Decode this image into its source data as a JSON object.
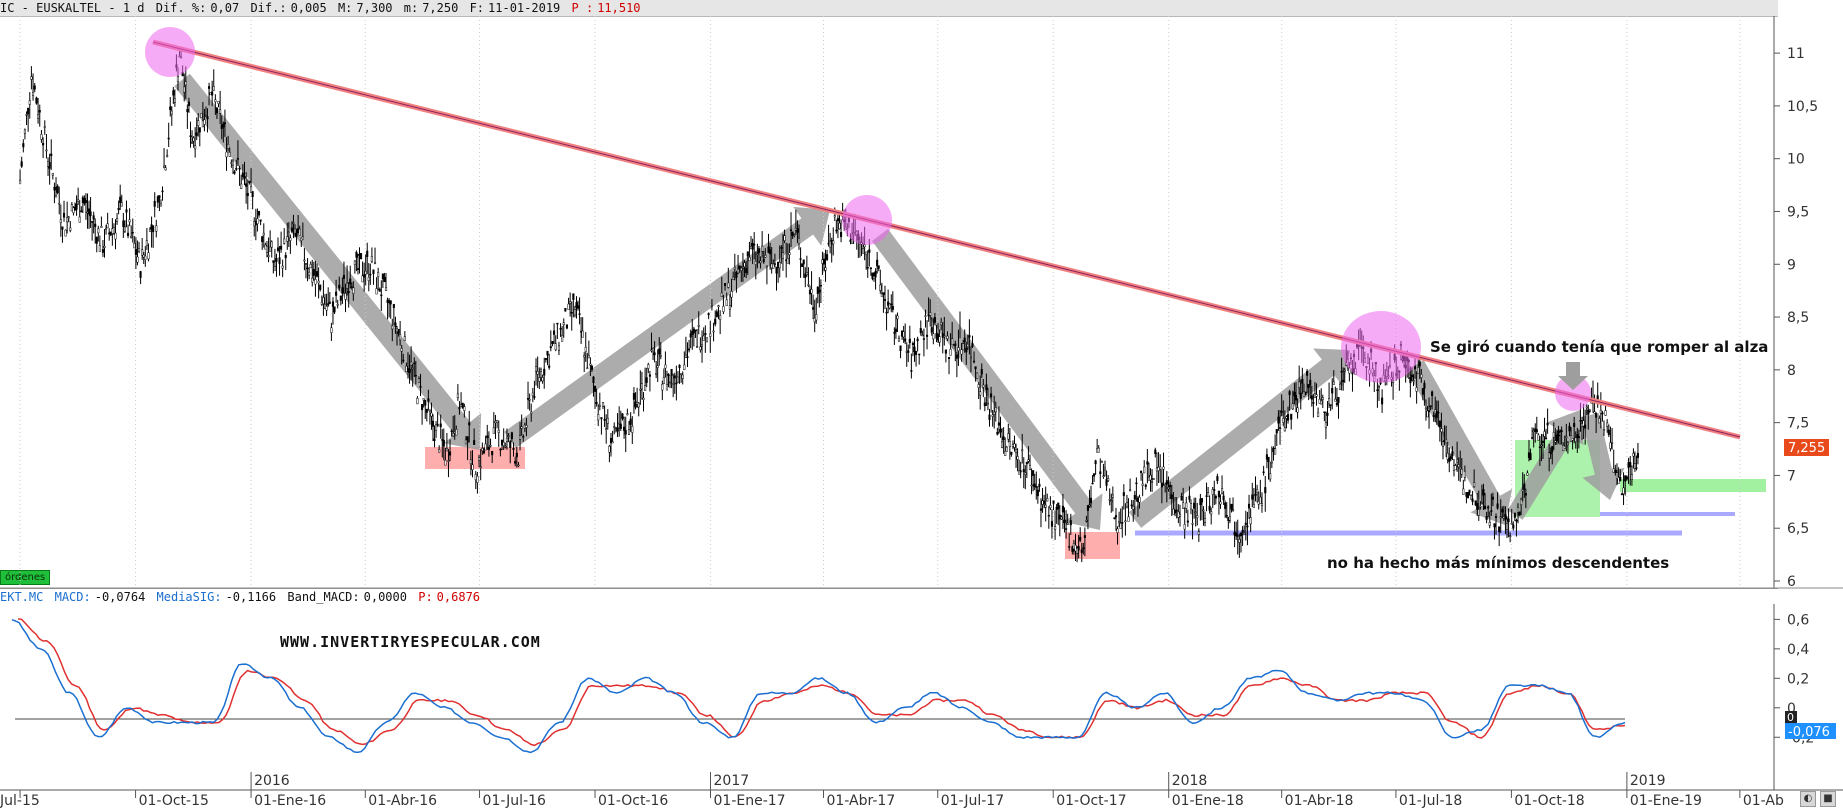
{
  "header_top": {
    "symbol_title": "IC - EUSKALTEL -  1 d",
    "dif_pct_label": "Dif. %:",
    "dif_pct_value": "0,07",
    "dif_label": "Dif.:",
    "dif_value": "0,005",
    "max_label": "M:",
    "max_value": "7,300",
    "min_label": "m:",
    "min_value": "7,250",
    "date_label": "F:",
    "date_value": "11-01-2019",
    "price_label": "P :",
    "price_value": "11,510"
  },
  "header_macd": {
    "symbol": "EKT.MC",
    "macd_label": "MACD:",
    "macd_value": "-0,0764",
    "signal_label": "MediaSIG:",
    "signal_value": "-0,1166",
    "band_label": "Band_MACD:",
    "band_value": "0,0000",
    "p_label": "P:",
    "p_value": "0,6876"
  },
  "orders_label": "órdenes",
  "watermark": "WWW.INVERTIRYESPECULAR.COM",
  "annotations": {
    "turn_text": "Se giró cuando tenía que romper al alza",
    "lows_text": "no ha hecho  más mínimos descendentes"
  },
  "last_price_badge": "7,255",
  "macd_badge": "-0,076",
  "macd_zero_badge": "0",
  "colors": {
    "price": "#000000",
    "trendline": "#f08080",
    "macd": "#1a6fd0",
    "signal": "#e03030",
    "support": "#a9a9ff",
    "target_zone": "#90ee90",
    "bottom_zone": "#ff9a9a",
    "highlight": "#ee66ee",
    "arrow": "#9e9e9e"
  },
  "chart_data": [
    {
      "type": "candlestick",
      "series": [
        {
          "name": "EUSKALTEL",
          "points": [
            {
              "date": "2015-07-01",
              "y": 9.8
            },
            {
              "date": "2015-07-10",
              "y": 10.8
            },
            {
              "date": "2015-07-22",
              "y": 10.1
            },
            {
              "date": "2015-08-05",
              "y": 9.4
            },
            {
              "date": "2015-08-20",
              "y": 9.6
            },
            {
              "date": "2015-09-05",
              "y": 9.2
            },
            {
              "date": "2015-09-20",
              "y": 9.5
            },
            {
              "date": "2015-10-05",
              "y": 9.0
            },
            {
              "date": "2015-10-20",
              "y": 9.6
            },
            {
              "date": "2015-11-05",
              "y": 11.0
            },
            {
              "date": "2015-11-15",
              "y": 10.2
            },
            {
              "date": "2015-12-01",
              "y": 10.6
            },
            {
              "date": "2015-12-15",
              "y": 10.1
            },
            {
              "date": "2016-01-01",
              "y": 9.6
            },
            {
              "date": "2016-01-20",
              "y": 9.0
            },
            {
              "date": "2016-02-05",
              "y": 9.3
            },
            {
              "date": "2016-02-20",
              "y": 8.9
            },
            {
              "date": "2016-03-05",
              "y": 8.5
            },
            {
              "date": "2016-03-20",
              "y": 8.9
            },
            {
              "date": "2016-04-05",
              "y": 9.0
            },
            {
              "date": "2016-04-20",
              "y": 8.6
            },
            {
              "date": "2016-05-05",
              "y": 8.1
            },
            {
              "date": "2016-05-20",
              "y": 7.6
            },
            {
              "date": "2016-06-05",
              "y": 7.2
            },
            {
              "date": "2016-06-15",
              "y": 7.7
            },
            {
              "date": "2016-06-28",
              "y": 7.1
            },
            {
              "date": "2016-07-15",
              "y": 7.4
            },
            {
              "date": "2016-08-01",
              "y": 7.2
            },
            {
              "date": "2016-08-15",
              "y": 7.9
            },
            {
              "date": "2016-09-01",
              "y": 8.3
            },
            {
              "date": "2016-09-15",
              "y": 8.6
            },
            {
              "date": "2016-10-01",
              "y": 7.8
            },
            {
              "date": "2016-10-15",
              "y": 7.3
            },
            {
              "date": "2016-11-01",
              "y": 7.6
            },
            {
              "date": "2016-11-15",
              "y": 8.1
            },
            {
              "date": "2016-12-01",
              "y": 7.9
            },
            {
              "date": "2016-12-20",
              "y": 8.3
            },
            {
              "date": "2017-01-10",
              "y": 8.6
            },
            {
              "date": "2017-02-01",
              "y": 9.1
            },
            {
              "date": "2017-02-20",
              "y": 9.0
            },
            {
              "date": "2017-03-10",
              "y": 9.3
            },
            {
              "date": "2017-03-25",
              "y": 8.6
            },
            {
              "date": "2017-04-10",
              "y": 9.4
            },
            {
              "date": "2017-04-25",
              "y": 9.3
            },
            {
              "date": "2017-05-10",
              "y": 9.0
            },
            {
              "date": "2017-05-25",
              "y": 8.5
            },
            {
              "date": "2017-06-10",
              "y": 8.1
            },
            {
              "date": "2017-06-25",
              "y": 8.5
            },
            {
              "date": "2017-07-10",
              "y": 8.2
            },
            {
              "date": "2017-07-25",
              "y": 8.3
            },
            {
              "date": "2017-08-10",
              "y": 7.7
            },
            {
              "date": "2017-08-25",
              "y": 7.3
            },
            {
              "date": "2017-09-10",
              "y": 7.1
            },
            {
              "date": "2017-09-25",
              "y": 6.7
            },
            {
              "date": "2017-10-10",
              "y": 6.5
            },
            {
              "date": "2017-10-25",
              "y": 6.3
            },
            {
              "date": "2017-11-05",
              "y": 7.2
            },
            {
              "date": "2017-11-20",
              "y": 6.6
            },
            {
              "date": "2017-12-05",
              "y": 6.8
            },
            {
              "date": "2017-12-20",
              "y": 7.1
            },
            {
              "date": "2018-01-10",
              "y": 6.7
            },
            {
              "date": "2018-01-25",
              "y": 6.6
            },
            {
              "date": "2018-02-10",
              "y": 6.9
            },
            {
              "date": "2018-02-25",
              "y": 6.5
            },
            {
              "date": "2018-03-15",
              "y": 6.8
            },
            {
              "date": "2018-04-01",
              "y": 7.5
            },
            {
              "date": "2018-04-20",
              "y": 7.9
            },
            {
              "date": "2018-05-05",
              "y": 7.6
            },
            {
              "date": "2018-05-20",
              "y": 7.9
            },
            {
              "date": "2018-06-05",
              "y": 8.2
            },
            {
              "date": "2018-06-20",
              "y": 7.8
            },
            {
              "date": "2018-07-05",
              "y": 8.1
            },
            {
              "date": "2018-07-20",
              "y": 7.9
            },
            {
              "date": "2018-08-05",
              "y": 7.5
            },
            {
              "date": "2018-08-20",
              "y": 7.0
            },
            {
              "date": "2018-09-05",
              "y": 6.8
            },
            {
              "date": "2018-09-20",
              "y": 6.6
            },
            {
              "date": "2018-10-05",
              "y": 6.5
            },
            {
              "date": "2018-10-20",
              "y": 7.4
            },
            {
              "date": "2018-11-05",
              "y": 7.3
            },
            {
              "date": "2018-11-20",
              "y": 7.4
            },
            {
              "date": "2018-12-05",
              "y": 7.7
            },
            {
              "date": "2018-12-15",
              "y": 7.5
            },
            {
              "date": "2018-12-28",
              "y": 6.8
            },
            {
              "date": "2019-01-05",
              "y": 7.1
            },
            {
              "date": "2019-01-11",
              "y": 7.255
            }
          ]
        }
      ],
      "ylim": [
        6.0,
        11.2
      ],
      "yticks": [
        "11",
        "10,5",
        "10",
        "9,5",
        "9",
        "8,5",
        "8",
        "7,5",
        "7",
        "6,5",
        "6"
      ],
      "xticks": [
        "Jul-15",
        "01-Oct-15",
        "01-Ene-16",
        "01-Abr-16",
        "01-Jul-16",
        "01-Oct-16",
        "01-Ene-17",
        "01-Abr-17",
        "01-Jul-17",
        "01-Oct-17",
        "01-Ene-18",
        "01-Abr-18",
        "01-Jul-18",
        "01-Oct-18",
        "01-Ene-19",
        "01-Ab"
      ],
      "year_labels": [
        "2016",
        "2017",
        "2018",
        "2019"
      ],
      "overlays": {
        "trendline": [
          {
            "date": "2015-10-20",
            "y": 11.1
          },
          {
            "date": "2019-04-15",
            "y": 7.3
          }
        ],
        "support_lines": [
          {
            "from": "2017-11-20",
            "to": "2019-03-10",
            "y": 6.45
          },
          {
            "from": "2018-12-10",
            "to": "2019-04-10",
            "y": 6.62
          }
        ]
      }
    },
    {
      "type": "line",
      "title": "MACD",
      "series": [
        {
          "name": "MACD",
          "y": [
            0.6,
            0.4,
            0.1,
            -0.2,
            0.0,
            -0.1,
            -0.1,
            -0.1,
            0.3,
            0.2,
            0.0,
            -0.2,
            -0.3,
            -0.1,
            0.1,
            0.0,
            -0.1,
            -0.2,
            -0.3,
            -0.1,
            0.2,
            0.1,
            0.2,
            0.1,
            -0.1,
            -0.2,
            0.1,
            0.1,
            0.2,
            0.1,
            -0.1,
            0.0,
            0.1,
            0.0,
            -0.1,
            -0.2,
            -0.2,
            -0.2,
            0.1,
            0.0,
            0.1,
            -0.1,
            0.0,
            0.2,
            0.25,
            0.1,
            0.05,
            0.1,
            0.1,
            0.05,
            -0.2,
            -0.15,
            0.15,
            0.15,
            0.1,
            -0.2,
            -0.1
          ]
        },
        {
          "name": "MediaSIG",
          "y": [
            0.6,
            0.45,
            0.15,
            -0.15,
            0.0,
            -0.05,
            -0.1,
            -0.1,
            0.25,
            0.2,
            0.05,
            -0.15,
            -0.25,
            -0.15,
            0.05,
            0.05,
            -0.05,
            -0.15,
            -0.25,
            -0.15,
            0.15,
            0.15,
            0.15,
            0.1,
            -0.05,
            -0.2,
            0.05,
            0.1,
            0.15,
            0.1,
            -0.05,
            -0.05,
            0.05,
            0.05,
            -0.05,
            -0.15,
            -0.2,
            -0.2,
            0.05,
            0.0,
            0.05,
            -0.05,
            -0.05,
            0.15,
            0.2,
            0.15,
            0.05,
            0.05,
            0.1,
            0.1,
            -0.1,
            -0.2,
            0.1,
            0.15,
            0.1,
            -0.15,
            -0.12
          ]
        }
      ],
      "ylim": [
        -0.3,
        0.65
      ],
      "yticks": [
        "0,6",
        "0,4",
        "0,2",
        "0",
        "-0,2"
      ]
    }
  ]
}
